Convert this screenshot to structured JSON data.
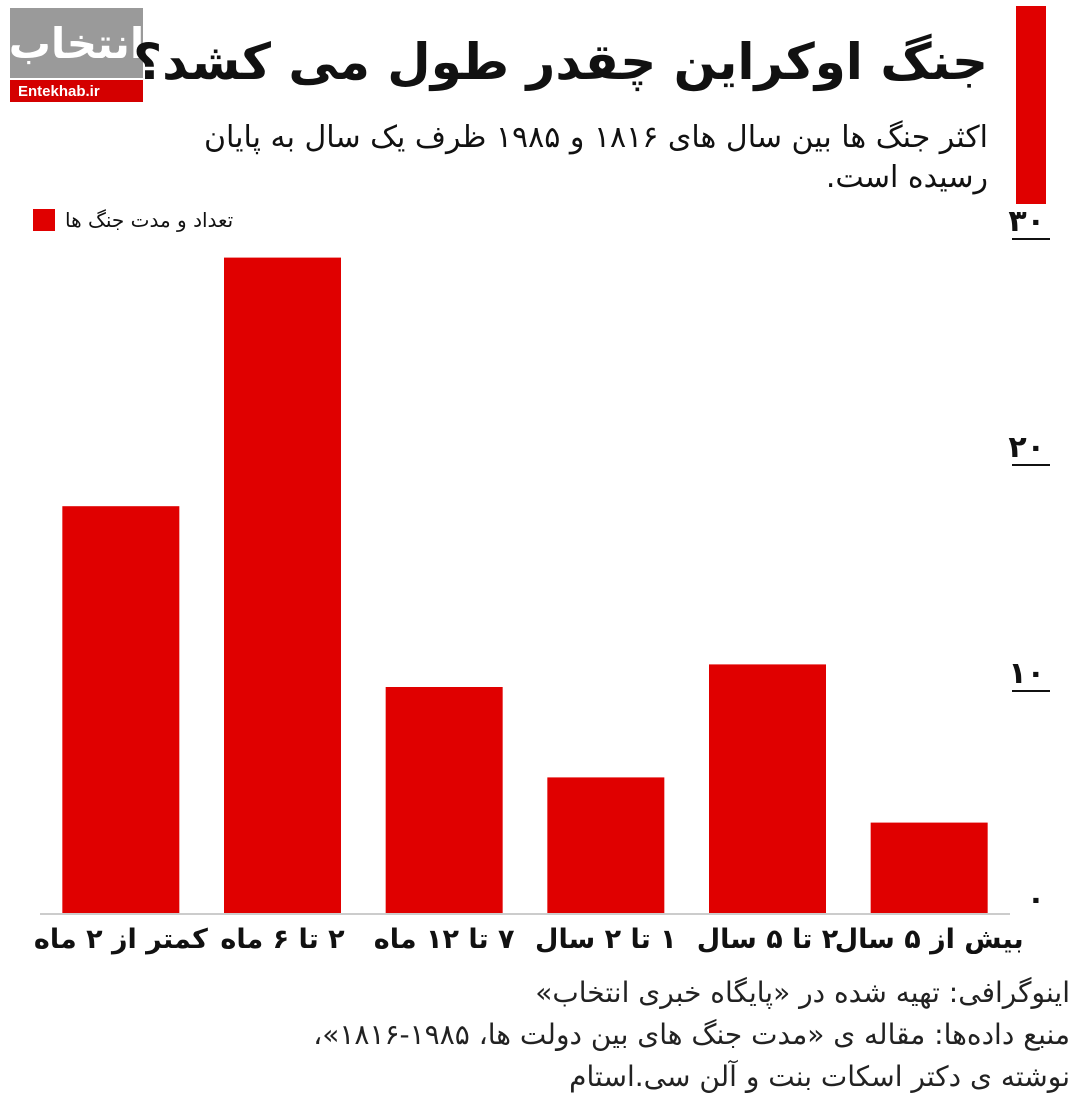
{
  "logo": {
    "text": "انتخاب",
    "site": "Entekhab.ir"
  },
  "colors": {
    "bar": "#e00000",
    "accent": "#e00000",
    "logo_bg": "#9a9a9a"
  },
  "header": {
    "title": "جنگ اوکراین چقدر طول می کشد؟",
    "subtitle": "اکثر جنگ ها بین سال های ۱۸۱۶ و ۱۹۸۵ ظرف یک سال به پایان رسیده است."
  },
  "chart_data": {
    "type": "bar",
    "categories": [
      "کمتر از ۲ ماه",
      "۲ تا ۶ ماه",
      "۷ تا ۱۲ ماه",
      "۱ تا ۲ سال",
      "۲ تا ۵ سال",
      "بیش از ۵ سال"
    ],
    "series": [
      {
        "name": "تعداد و مدت جنگ ها",
        "values": [
          18,
          29,
          10,
          6,
          11,
          4
        ]
      }
    ],
    "ylim": [
      0,
      30
    ],
    "yticks": [
      0,
      10,
      20,
      30
    ],
    "ytick_labels": [
      "۰",
      "۱۰",
      "۲۰",
      "۳۰"
    ],
    "legend_position": "top-left",
    "grid": false
  },
  "footer": {
    "line1": "اینوگرافی: تهیه شده در «پایگاه خبری انتخاب»",
    "line2": "منبع داده‌ها: مقاله ی «مدت جنگ های بین دولت ها، ۱۹۸۵-۱۸۱۶»،",
    "line3": "نوشته ی دکتر اسکات بنت و آلن سی.استام"
  }
}
